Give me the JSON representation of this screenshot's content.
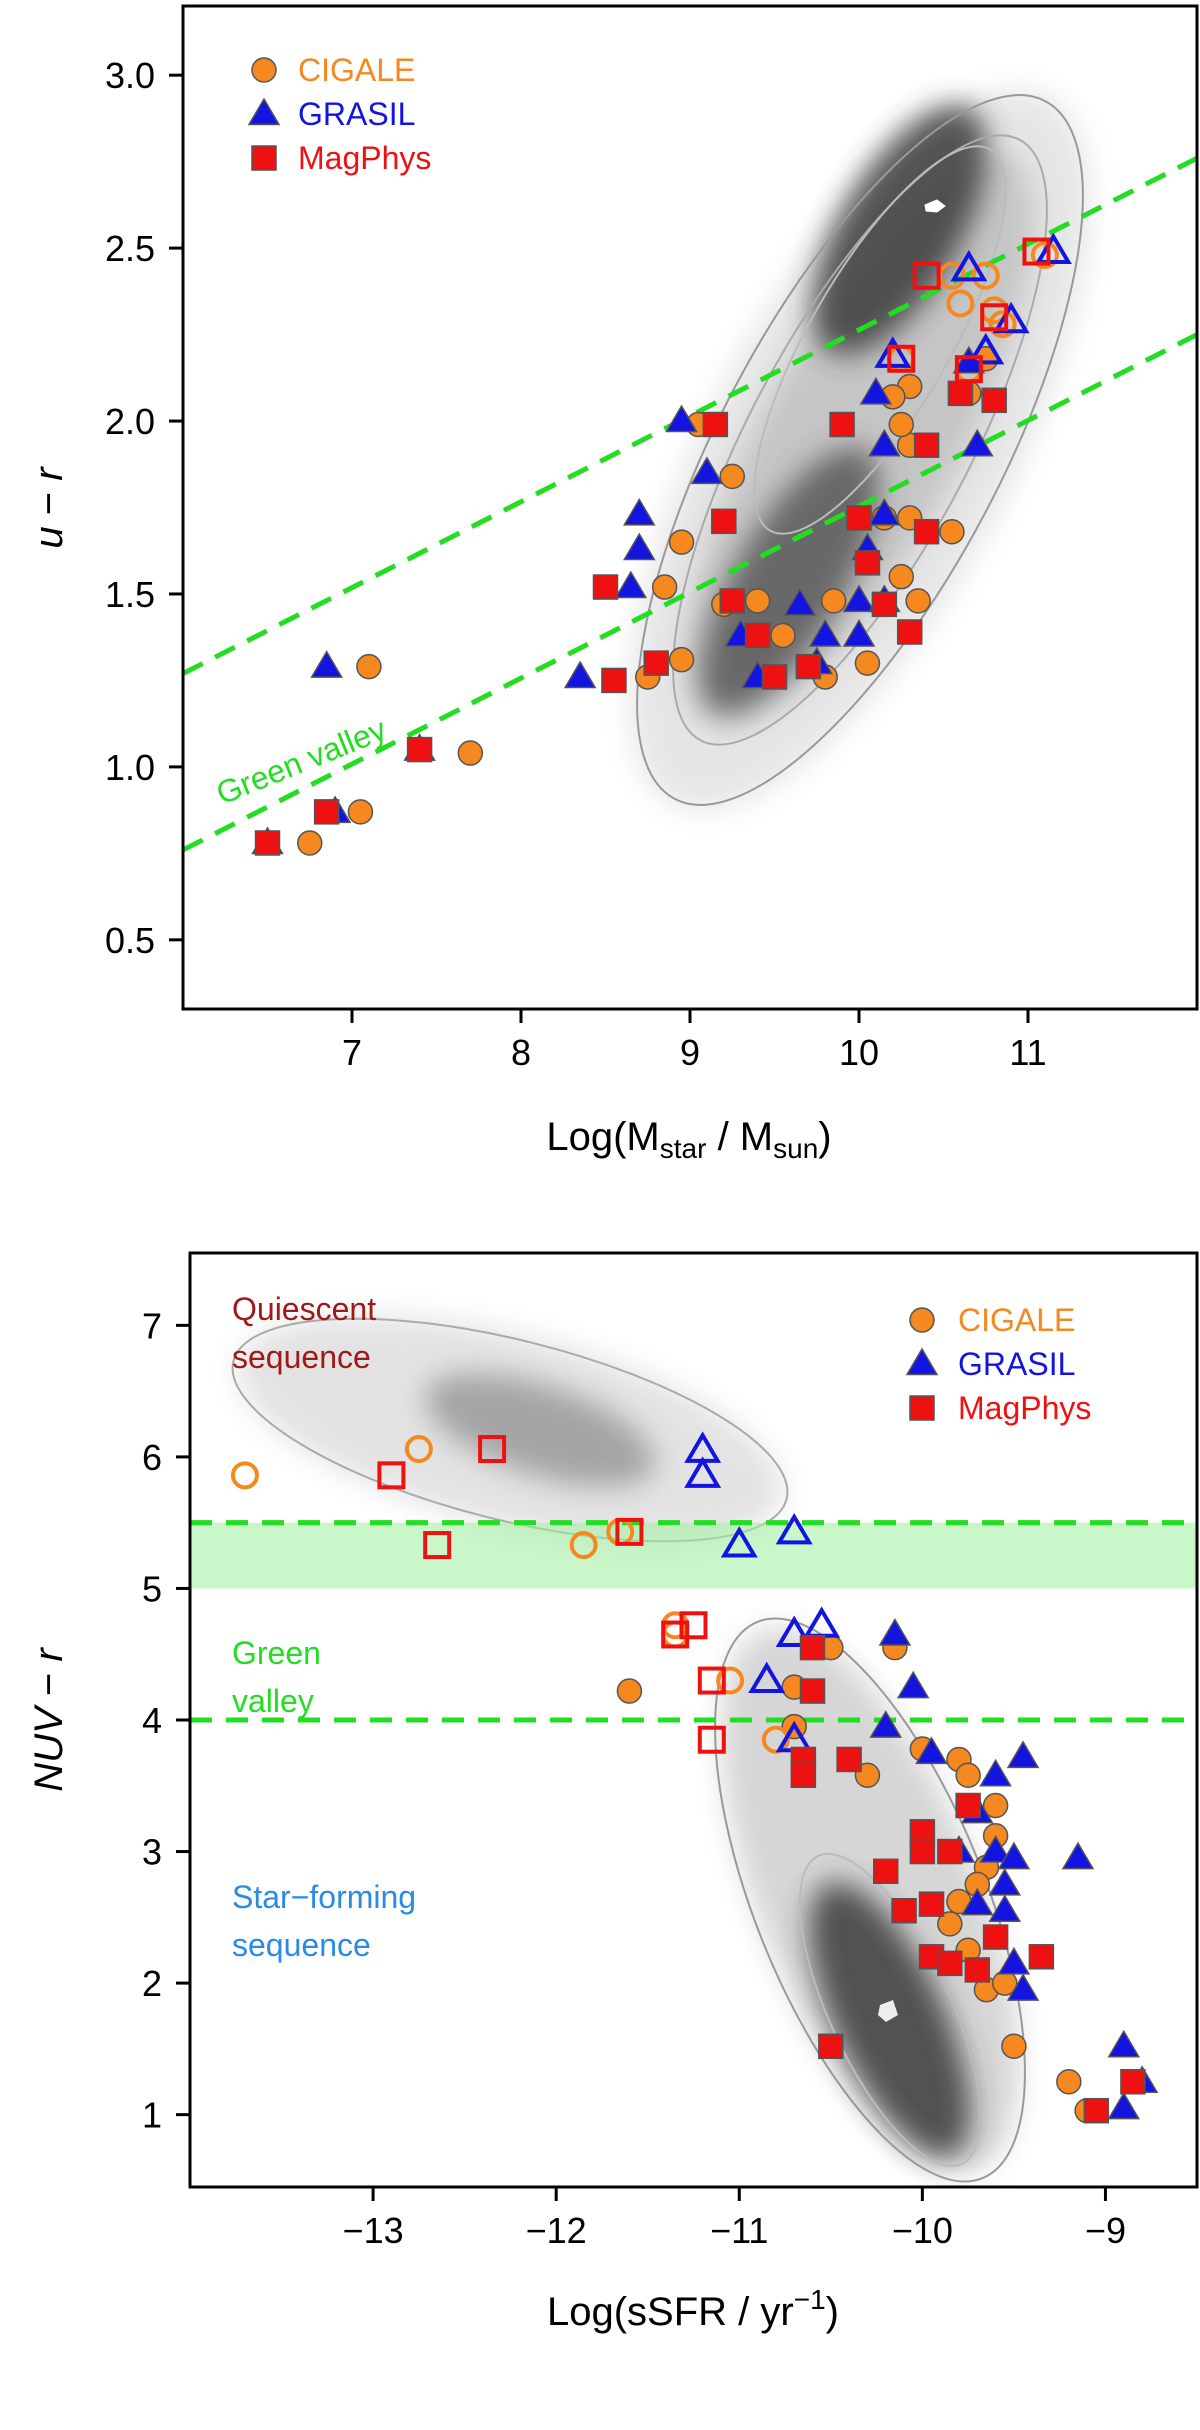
{
  "chart_data": [
    {
      "type": "scatter",
      "title": "",
      "xlabel": "Log(M",
      "xlabel_sub1": "star",
      "xlabel_mid": " / M",
      "xlabel_sub2": "sun",
      "xlabel_end": ")",
      "ylabel_italic_left": "u",
      "ylabel_mid": " − ",
      "ylabel_italic_right": "r",
      "xlim": [
        6.0,
        12.0
      ],
      "ylim": [
        0.3,
        3.2
      ],
      "xticks": [
        "7",
        "8",
        "9",
        "10",
        "11"
      ],
      "yticks": [
        "0.5",
        "1.0",
        "1.5",
        "2.0",
        "2.5",
        "3.0"
      ],
      "legend_position": "top-left",
      "legend": [
        {
          "name": "CIGALE",
          "marker": "circle",
          "color": "#f5881f"
        },
        {
          "name": "GRASIL",
          "marker": "triangle",
          "color": "#1414e0"
        },
        {
          "name": "MagPhys",
          "marker": "square",
          "color": "#ee1111"
        }
      ],
      "annotation": "Green valley",
      "green_valley_lines": [
        {
          "x": [
            6.0,
            12.0
          ],
          "y": [
            1.27,
            2.76
          ]
        },
        {
          "x": [
            6.0,
            12.0
          ],
          "y": [
            0.76,
            2.25
          ]
        }
      ],
      "background": "grey density histogram with contours",
      "series": [
        {
          "name": "CIGALE",
          "marker": "circle",
          "filled": true,
          "points": [
            [
              7.1,
              1.29
            ],
            [
              7.7,
              1.04
            ],
            [
              7.05,
              0.87
            ],
            [
              6.75,
              0.78
            ],
            [
              8.95,
              1.65
            ],
            [
              8.85,
              1.52
            ],
            [
              8.95,
              1.31
            ],
            [
              8.75,
              1.26
            ],
            [
              9.2,
              1.47
            ],
            [
              9.4,
              1.48
            ],
            [
              9.55,
              1.38
            ],
            [
              9.85,
              1.48
            ],
            [
              10.05,
              1.3
            ],
            [
              10.15,
              1.72
            ],
            [
              10.3,
              1.72
            ],
            [
              10.25,
              1.55
            ],
            [
              10.35,
              1.48
            ],
            [
              10.3,
              1.39
            ],
            [
              9.8,
              1.26
            ],
            [
              9.25,
              1.84
            ],
            [
              9.05,
              1.99
            ],
            [
              10.55,
              1.68
            ],
            [
              10.3,
              1.93
            ],
            [
              10.25,
              1.99
            ],
            [
              10.3,
              2.1
            ],
            [
              10.2,
              2.07
            ],
            [
              10.65,
              2.08
            ],
            [
              10.75,
              2.18
            ]
          ]
        },
        {
          "name": "CIGALE",
          "marker": "circle",
          "filled": false,
          "points": [
            [
              10.55,
              2.42
            ],
            [
              10.75,
              2.42
            ],
            [
              10.6,
              2.34
            ],
            [
              10.8,
              2.32
            ],
            [
              10.85,
              2.28
            ],
            [
              10.65,
              2.15
            ],
            [
              11.1,
              2.48
            ],
            [
              10.25,
              2.18
            ]
          ]
        },
        {
          "name": "GRASIL",
          "marker": "triangle",
          "filled": true,
          "points": [
            [
              6.85,
              1.29
            ],
            [
              6.5,
              0.78
            ],
            [
              6.9,
              0.87
            ],
            [
              7.4,
              1.05
            ],
            [
              8.35,
              1.26
            ],
            [
              8.7,
              1.63
            ],
            [
              8.7,
              1.73
            ],
            [
              8.65,
              1.52
            ],
            [
              8.95,
              2.0
            ],
            [
              9.1,
              1.85
            ],
            [
              9.3,
              1.38
            ],
            [
              9.65,
              1.47
            ],
            [
              9.8,
              1.38
            ],
            [
              9.4,
              1.26
            ],
            [
              9.75,
              1.3
            ],
            [
              10.0,
              1.48
            ],
            [
              10.05,
              1.63
            ],
            [
              10.15,
              1.48
            ],
            [
              10.0,
              1.38
            ],
            [
              10.15,
              1.73
            ],
            [
              10.15,
              1.93
            ],
            [
              10.1,
              2.08
            ],
            [
              10.7,
              1.93
            ],
            [
              10.65,
              2.17
            ]
          ]
        },
        {
          "name": "GRASIL",
          "marker": "triangle",
          "filled": false,
          "points": [
            [
              10.2,
              2.19
            ],
            [
              10.9,
              2.29
            ],
            [
              10.75,
              2.2
            ],
            [
              11.15,
              2.49
            ],
            [
              10.65,
              2.44
            ]
          ]
        },
        {
          "name": "MagPhys",
          "marker": "square",
          "filled": true,
          "points": [
            [
              6.5,
              0.78
            ],
            [
              6.85,
              0.87
            ],
            [
              7.4,
              1.05
            ],
            [
              8.55,
              1.25
            ],
            [
              8.5,
              1.52
            ],
            [
              8.8,
              1.3
            ],
            [
              9.15,
              1.99
            ],
            [
              9.2,
              1.71
            ],
            [
              9.25,
              1.48
            ],
            [
              9.4,
              1.38
            ],
            [
              9.5,
              1.26
            ],
            [
              9.7,
              1.29
            ],
            [
              9.9,
              1.99
            ],
            [
              10.0,
              1.72
            ],
            [
              10.05,
              1.59
            ],
            [
              10.15,
              1.47
            ],
            [
              10.3,
              1.39
            ],
            [
              10.4,
              1.68
            ],
            [
              10.4,
              1.93
            ],
            [
              10.6,
              2.08
            ],
            [
              10.8,
              2.06
            ]
          ]
        },
        {
          "name": "MagPhys",
          "marker": "square",
          "filled": false,
          "points": [
            [
              10.4,
              2.42
            ],
            [
              10.8,
              2.3
            ],
            [
              10.65,
              2.15
            ],
            [
              10.25,
              2.18
            ],
            [
              11.05,
              2.49
            ]
          ]
        }
      ]
    },
    {
      "type": "scatter",
      "title": "",
      "xlabel": "Log(sSFR / yr",
      "xlabel_sup": "−1",
      "xlabel_end": ")",
      "ylabel_italic": "NUV",
      "ylabel_mid": " − ",
      "ylabel_italic_right": "r",
      "xlim": [
        -14.0,
        -8.5
      ],
      "ylim": [
        0.45,
        7.55
      ],
      "xticks": [
        "−13",
        "−12",
        "−11",
        "−10",
        "−9"
      ],
      "yticks": [
        "1",
        "2",
        "3",
        "4",
        "5",
        "6",
        "7"
      ],
      "legend_position": "top-right",
      "legend": [
        {
          "name": "CIGALE",
          "marker": "circle",
          "color": "#f5881f"
        },
        {
          "name": "GRASIL",
          "marker": "triangle",
          "color": "#1414e0"
        },
        {
          "name": "MagPhys",
          "marker": "square",
          "color": "#ee1111"
        }
      ],
      "annotations": {
        "quiescent_line1": "Quiescent",
        "quiescent_line2": "sequence",
        "green_line1": "Green",
        "green_line2": "valley",
        "sf_line1": "Star−forming",
        "sf_line2": "sequence"
      },
      "annotation_colors": {
        "quiescent": "#a01818",
        "green": "#22dd22",
        "star_forming": "#2a8ae6"
      },
      "green_band": [
        5.0,
        5.5
      ],
      "green_valley_lines_y": [
        5.5,
        4.0
      ],
      "background": "grey density histogram with contours",
      "series": [
        {
          "name": "CIGALE",
          "marker": "circle",
          "filled": true,
          "points": [
            [
              -11.6,
              4.22
            ],
            [
              -10.7,
              4.25
            ],
            [
              -10.5,
              4.55
            ],
            [
              -10.15,
              4.55
            ],
            [
              -10.7,
              3.95
            ],
            [
              -10.4,
              3.7
            ],
            [
              -10.3,
              3.58
            ],
            [
              -10.0,
              3.78
            ],
            [
              -9.8,
              3.7
            ],
            [
              -9.75,
              3.58
            ],
            [
              -9.6,
              3.12
            ],
            [
              -9.6,
              3.35
            ],
            [
              -9.65,
              2.88
            ],
            [
              -9.7,
              2.75
            ],
            [
              -9.8,
              2.62
            ],
            [
              -9.85,
              2.45
            ],
            [
              -9.75,
              2.25
            ],
            [
              -9.7,
              2.1
            ],
            [
              -9.65,
              1.95
            ],
            [
              -9.55,
              2.0
            ],
            [
              -9.5,
              1.52
            ],
            [
              -9.2,
              1.25
            ],
            [
              -9.1,
              1.03
            ]
          ]
        },
        {
          "name": "CIGALE",
          "marker": "circle",
          "filled": false,
          "points": [
            [
              -13.7,
              5.86
            ],
            [
              -12.75,
              6.06
            ],
            [
              -11.85,
              5.33
            ],
            [
              -11.65,
              5.43
            ],
            [
              -11.35,
              4.72
            ],
            [
              -11.35,
              4.65
            ],
            [
              -11.05,
              4.3
            ],
            [
              -10.8,
              3.85
            ]
          ]
        },
        {
          "name": "GRASIL",
          "marker": "triangle",
          "filled": true,
          "points": [
            [
              -10.15,
              4.65
            ],
            [
              -10.05,
              4.25
            ],
            [
              -10.2,
              3.95
            ],
            [
              -9.95,
              3.75
            ],
            [
              -9.6,
              3.58
            ],
            [
              -9.45,
              3.72
            ],
            [
              -9.7,
              3.3
            ],
            [
              -9.8,
              3.0
            ],
            [
              -9.6,
              3.0
            ],
            [
              -9.5,
              2.95
            ],
            [
              -9.55,
              2.75
            ],
            [
              -9.15,
              2.95
            ],
            [
              -9.7,
              2.6
            ],
            [
              -9.55,
              2.55
            ],
            [
              -9.5,
              2.15
            ],
            [
              -9.45,
              1.95
            ],
            [
              -8.9,
              1.52
            ],
            [
              -8.8,
              1.25
            ],
            [
              -8.9,
              1.05
            ]
          ]
        },
        {
          "name": "GRASIL",
          "marker": "triangle",
          "filled": false,
          "points": [
            [
              -11.2,
              6.05
            ],
            [
              -11.2,
              5.86
            ],
            [
              -11.0,
              5.33
            ],
            [
              -10.7,
              5.43
            ],
            [
              -10.7,
              4.65
            ],
            [
              -10.55,
              4.72
            ],
            [
              -10.85,
              4.3
            ],
            [
              -10.7,
              3.85
            ]
          ]
        },
        {
          "name": "MagPhys",
          "marker": "square",
          "filled": true,
          "points": [
            [
              -10.6,
              4.55
            ],
            [
              -10.6,
              4.22
            ],
            [
              -10.65,
              3.7
            ],
            [
              -10.65,
              3.58
            ],
            [
              -10.4,
              3.7
            ],
            [
              -10.0,
              3.15
            ],
            [
              -10.0,
              3.0
            ],
            [
              -9.85,
              3.0
            ],
            [
              -9.75,
              3.35
            ],
            [
              -10.2,
              2.85
            ],
            [
              -10.1,
              2.55
            ],
            [
              -9.95,
              2.6
            ],
            [
              -9.95,
              2.2
            ],
            [
              -9.85,
              2.15
            ],
            [
              -9.7,
              2.1
            ],
            [
              -9.6,
              2.35
            ],
            [
              -9.35,
              2.2
            ],
            [
              -10.5,
              1.52
            ],
            [
              -9.05,
              1.03
            ],
            [
              -8.85,
              1.25
            ]
          ]
        },
        {
          "name": "MagPhys",
          "marker": "square",
          "filled": false,
          "points": [
            [
              -12.9,
              5.86
            ],
            [
              -12.35,
              6.06
            ],
            [
              -12.65,
              5.33
            ],
            [
              -11.6,
              5.43
            ],
            [
              -11.25,
              4.72
            ],
            [
              -11.15,
              4.3
            ],
            [
              -11.15,
              3.85
            ],
            [
              -11.35,
              4.65
            ]
          ]
        }
      ]
    }
  ]
}
